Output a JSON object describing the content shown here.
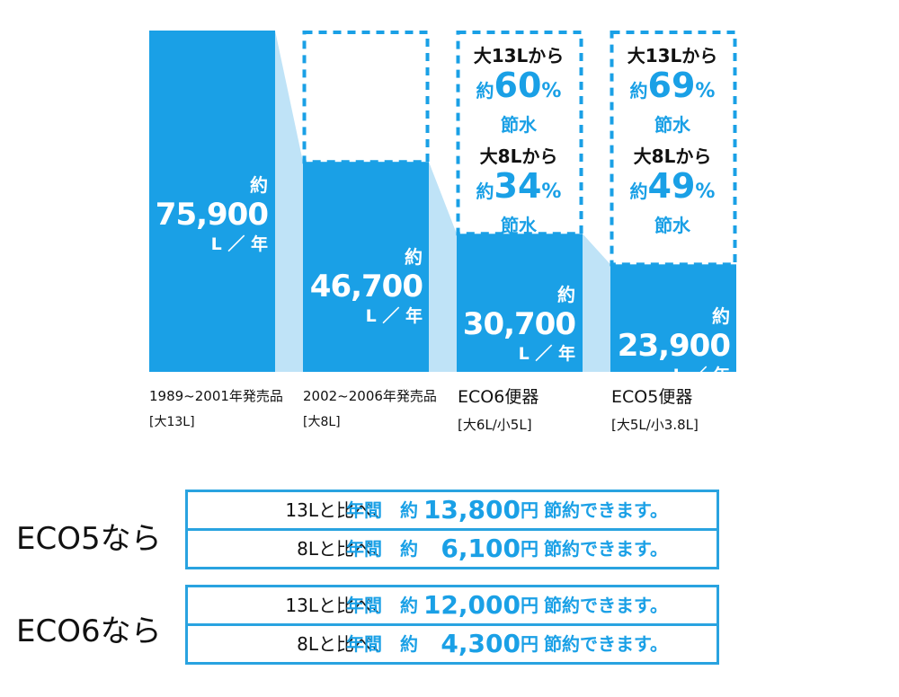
{
  "chart_data": {
    "type": "bar",
    "categories": [
      "1989~2001年発売品",
      "2002~2006年発売品",
      "ECO6便器",
      "ECO5便器"
    ],
    "category_specs": [
      "[大13L]",
      "[大8L]",
      "[大6L/小5L]",
      "[大5L/小3.8L]"
    ],
    "values": [
      75900,
      46700,
      30700,
      23900
    ],
    "value_labels": [
      {
        "prefix": "約",
        "number": "75,900",
        "unit": "L ／ 年"
      },
      {
        "prefix": "約",
        "number": "46,700",
        "unit": "L ／ 年"
      },
      {
        "prefix": "約",
        "number": "30,700",
        "unit": "L ／ 年"
      },
      {
        "prefix": "約",
        "number": "23,900",
        "unit": "L ／ 年"
      }
    ],
    "ylim": [
      0,
      75900
    ],
    "savings": [
      null,
      null,
      [
        {
          "from": "大13Lから",
          "prefix": "約",
          "percent": "60",
          "unit": "%",
          "label": "節水"
        },
        {
          "from": "大8Lから",
          "prefix": "約",
          "percent": "34",
          "unit": "%",
          "label": "節水"
        }
      ],
      [
        {
          "from": "大13Lから",
          "prefix": "約",
          "percent": "69",
          "unit": "%",
          "label": "節水"
        },
        {
          "from": "大8Lから",
          "prefix": "約",
          "percent": "49",
          "unit": "%",
          "label": "節水"
        }
      ]
    ],
    "colors": {
      "bar": "#1aa0e6",
      "connector": "#bfe3f7",
      "outline": "#1aa0e6"
    }
  },
  "cost_tables": [
    {
      "label": "ECO5なら",
      "rows": [
        {
          "compare": "13Lと比べ、",
          "period": "年間",
          "prefix": "約",
          "amount": "13,800",
          "currency": "円",
          "suffix": "節約できます。"
        },
        {
          "compare": "8Lと比べ、",
          "period": "年間",
          "prefix": "約",
          "amount": "6,100",
          "currency": "円",
          "suffix": "節約できます。"
        }
      ]
    },
    {
      "label": "ECO6なら",
      "rows": [
        {
          "compare": "13Lと比べ、",
          "period": "年間",
          "prefix": "約",
          "amount": "12,000",
          "currency": "円",
          "suffix": "節約できます。"
        },
        {
          "compare": "8Lと比べ、",
          "period": "年間",
          "prefix": "約",
          "amount": "4,300",
          "currency": "円",
          "suffix": "節約できます。"
        }
      ]
    }
  ]
}
